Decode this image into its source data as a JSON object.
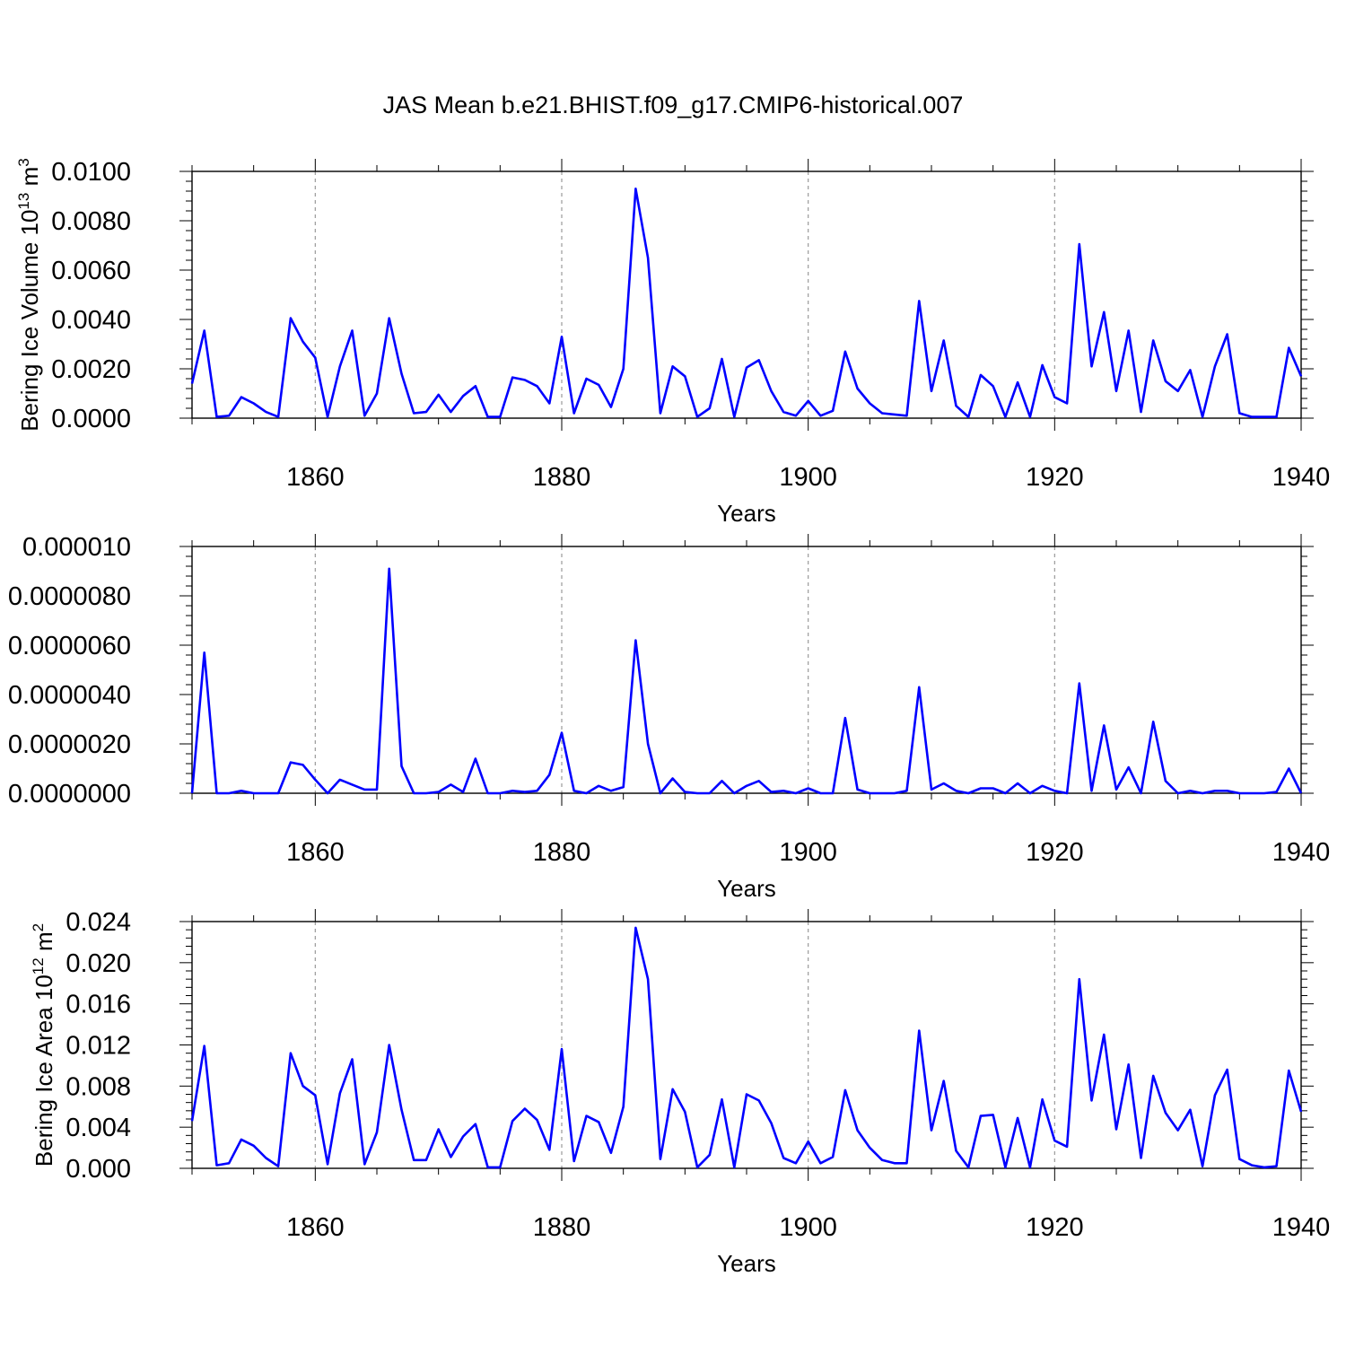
{
  "title": "JAS Mean b.e21.BHIST.f09_g17.CMIP6-historical.007",
  "colors": {
    "series": "#0000ff",
    "axis": "#000000",
    "grid": "#999999"
  },
  "chart_data": [
    {
      "type": "line",
      "xlabel": "Years",
      "ylabel": "Bering Ice Volume 10",
      "ylabel_sup": "13",
      "ylabel_unit": " m",
      "ylabel_unit_sup": "3",
      "xlim": [
        1850,
        1940
      ],
      "ylim": [
        0,
        0.01
      ],
      "yticks": [
        "0.0000",
        "0.0020",
        "0.0040",
        "0.0060",
        "0.0080",
        "0.0100"
      ],
      "xticks": [
        "1860",
        "1880",
        "1900",
        "1920",
        "1940"
      ],
      "grid_x": [
        1860,
        1880,
        1900,
        1920
      ],
      "x_start": 1850,
      "values": [
        0.0014,
        0.00355,
        5e-05,
        0.0001,
        0.00085,
        0.0006,
        0.00025,
        5e-05,
        0.00405,
        0.0031,
        0.00245,
        5e-05,
        0.0021,
        0.00355,
        0.0001,
        0.001,
        0.00405,
        0.0018,
        0.0002,
        0.00025,
        0.00095,
        0.00025,
        0.0009,
        0.0013,
        5e-05,
        5e-05,
        0.00165,
        0.00155,
        0.0013,
        0.0006,
        0.0033,
        0.0002,
        0.0016,
        0.00135,
        0.00045,
        0.002,
        0.0093,
        0.0065,
        0.0002,
        0.0021,
        0.0017,
        5e-05,
        0.0004,
        0.0024,
        5e-05,
        0.00205,
        0.00235,
        0.0011,
        0.00025,
        0.0001,
        0.0007,
        0.0001,
        0.0003,
        0.0027,
        0.0012,
        0.0006,
        0.0002,
        0.00015,
        0.0001,
        0.00475,
        0.0011,
        0.00315,
        0.0005,
        5e-05,
        0.00175,
        0.0013,
        5e-05,
        0.00145,
        5e-05,
        0.00215,
        0.00085,
        0.0006,
        0.00705,
        0.0021,
        0.0043,
        0.0011,
        0.00355,
        0.00025,
        0.00315,
        0.0015,
        0.0011,
        0.00195,
        5e-05,
        0.0021,
        0.0034,
        0.0002,
        5e-05,
        5e-05,
        5e-05,
        0.00285,
        0.0017
      ]
    },
    {
      "type": "line",
      "xlabel": "Years",
      "ylabel": "",
      "xlim": [
        1850,
        1940
      ],
      "ylim": [
        0,
        1e-05
      ],
      "yticks": [
        "0.0000000",
        "0.0000020",
        "0.0000040",
        "0.0000060",
        "0.0000080",
        "0.000010"
      ],
      "xticks": [
        "1860",
        "1880",
        "1900",
        "1920",
        "1940"
      ],
      "grid_x": [
        1860,
        1880,
        1900,
        1920
      ],
      "x_start": 1850,
      "values": [
        0.0,
        5.7e-06,
        0.0,
        0.0,
        1e-07,
        0.0,
        0.0,
        0.0,
        1.25e-06,
        1.15e-06,
        5.5e-07,
        0.0,
        5.5e-07,
        3.5e-07,
        1.5e-07,
        1.5e-07,
        9.1e-06,
        1.1e-06,
        0.0,
        0.0,
        5e-08,
        3.5e-07,
        5e-08,
        1.4e-06,
        0.0,
        0.0,
        1e-07,
        5e-08,
        1e-07,
        7.5e-07,
        2.45e-06,
        1e-07,
        0.0,
        3e-07,
        1e-07,
        2.5e-07,
        6.2e-06,
        2e-06,
        0.0,
        6e-07,
        5e-08,
        0.0,
        0.0,
        5e-07,
        0.0,
        3e-07,
        5e-07,
        5e-08,
        1e-07,
        0.0,
        2e-07,
        0.0,
        0.0,
        3.05e-06,
        1.5e-07,
        0.0,
        0.0,
        0.0,
        1e-07,
        4.3e-06,
        1.5e-07,
        4e-07,
        1e-07,
        0.0,
        2e-07,
        2e-07,
        0.0,
        4e-07,
        0.0,
        3e-07,
        1e-07,
        0.0,
        4.45e-06,
        1e-07,
        2.75e-06,
        1.5e-07,
        1.05e-06,
        0.0,
        2.9e-06,
        5e-07,
        0.0,
        1e-07,
        0.0,
        1e-07,
        1e-07,
        0.0,
        0.0,
        0.0,
        5e-08,
        1e-06,
        0.0
      ]
    },
    {
      "type": "line",
      "xlabel": "Years",
      "ylabel": "Bering Ice Area 10",
      "ylabel_sup": "12",
      "ylabel_unit": " m",
      "ylabel_unit_sup": "2",
      "xlim": [
        1850,
        1940
      ],
      "ylim": [
        0,
        0.024
      ],
      "yticks": [
        "0.000",
        "0.004",
        "0.008",
        "0.012",
        "0.016",
        "0.020",
        "0.024"
      ],
      "xticks": [
        "1860",
        "1880",
        "1900",
        "1920",
        "1940"
      ],
      "grid_x": [
        1860,
        1880,
        1900,
        1920
      ],
      "x_start": 1850,
      "values": [
        0.0046,
        0.0119,
        0.0003,
        0.0005,
        0.0028,
        0.0022,
        0.001,
        0.0002,
        0.0112,
        0.008,
        0.0071,
        0.0004,
        0.0073,
        0.0106,
        0.0004,
        0.0035,
        0.012,
        0.0057,
        0.0008,
        0.0008,
        0.0038,
        0.0011,
        0.0031,
        0.0043,
        0.0001,
        0.0001,
        0.0046,
        0.0058,
        0.0047,
        0.0018,
        0.0116,
        0.0007,
        0.0051,
        0.0045,
        0.0015,
        0.006,
        0.0234,
        0.0184,
        0.0009,
        0.0077,
        0.0055,
        0.0001,
        0.0013,
        0.0067,
        0.0001,
        0.0072,
        0.0066,
        0.0044,
        0.001,
        0.0005,
        0.0026,
        0.0005,
        0.0011,
        0.0076,
        0.0037,
        0.002,
        0.0008,
        0.0005,
        0.0005,
        0.0134,
        0.0037,
        0.0085,
        0.0017,
        0.0001,
        0.0051,
        0.0052,
        0.0001,
        0.0049,
        0.0001,
        0.0067,
        0.0027,
        0.0021,
        0.0184,
        0.0066,
        0.013,
        0.0038,
        0.0101,
        0.001,
        0.009,
        0.0054,
        0.0037,
        0.0057,
        0.0002,
        0.0071,
        0.0096,
        0.0009,
        0.0003,
        0.0001,
        0.0002,
        0.0095,
        0.0055
      ]
    }
  ]
}
